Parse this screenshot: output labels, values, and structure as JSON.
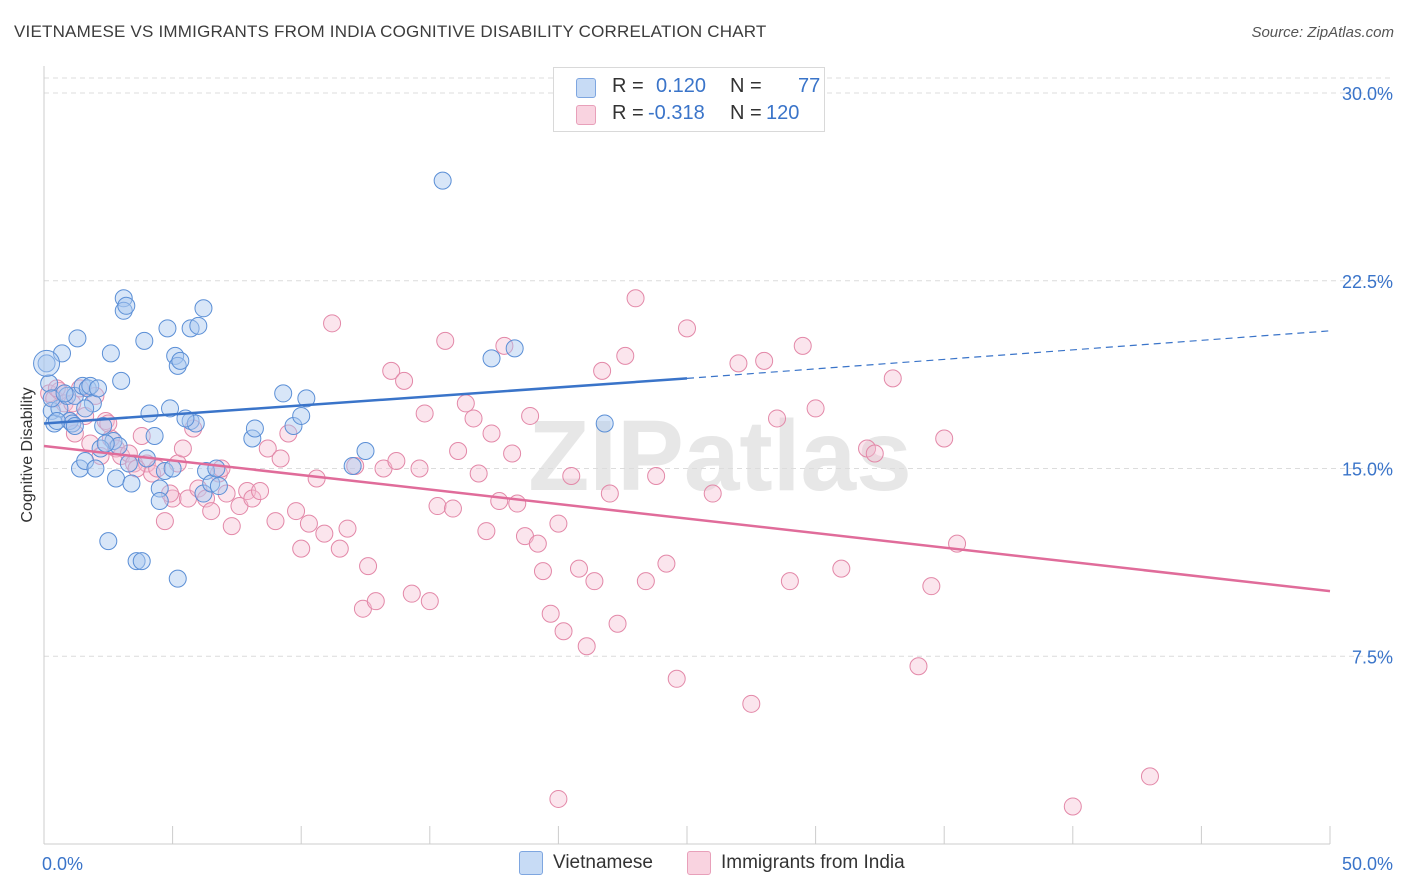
{
  "title": "VIETNAMESE VS IMMIGRANTS FROM INDIA COGNITIVE DISABILITY CORRELATION CHART",
  "source": "Source: ZipAtlas.com",
  "watermark": "ZIPatlas",
  "legend_top": [
    {
      "r_label": "R =",
      "r_value": "0.120",
      "n_label": "N =",
      "n_value": "77",
      "color": "#a9c8f0",
      "edge": "#5b8fd6"
    },
    {
      "r_label": "R =",
      "r_value": "-0.318",
      "n_label": "N =",
      "n_value": "120",
      "color": "#f6bfd2",
      "edge": "#e388a8"
    }
  ],
  "legend_bottom": [
    "Vietnamese",
    "Immigrants from India"
  ],
  "colors": {
    "blue": "#3a74c9",
    "pink": "#e06c9a",
    "axis_text": "#3a74c9",
    "grid": "#dddddd"
  },
  "chart_data": {
    "type": "scatter",
    "title": "VIETNAMESE VS IMMIGRANTS FROM INDIA COGNITIVE DISABILITY CORRELATION CHART",
    "xlabel": "",
    "ylabel": "Cognitive Disability",
    "xlim": [
      0,
      50
    ],
    "ylim": [
      0,
      30.6
    ],
    "x_tick_labels": [
      "0.0%",
      "50.0%"
    ],
    "y_ticks": [
      7.5,
      15.0,
      22.5,
      30.0
    ],
    "y_tick_labels": [
      "7.5%",
      "15.0%",
      "22.5%",
      "30.0%"
    ],
    "series": [
      {
        "name": "Vietnamese",
        "r": 0.12,
        "n": 77,
        "trend": {
          "x0": 0,
          "y0": 16.8,
          "x1": 25,
          "y1": 18.6,
          "dash_to_x": 50,
          "dash_to_y": 20.5
        },
        "points": [
          [
            0.1,
            19.2
          ],
          [
            0.2,
            18.4
          ],
          [
            0.3,
            17.3
          ],
          [
            0.4,
            16.8
          ],
          [
            0.6,
            17.4
          ],
          [
            0.7,
            19.6
          ],
          [
            0.9,
            17.9
          ],
          [
            1.0,
            16.9
          ],
          [
            1.1,
            16.8
          ],
          [
            1.2,
            17.9
          ],
          [
            1.3,
            20.2
          ],
          [
            1.4,
            15.0
          ],
          [
            1.5,
            18.3
          ],
          [
            1.6,
            15.3
          ],
          [
            1.7,
            18.2
          ],
          [
            1.8,
            18.3
          ],
          [
            1.9,
            17.6
          ],
          [
            2.0,
            15.0
          ],
          [
            2.1,
            18.2
          ],
          [
            2.3,
            16.7
          ],
          [
            2.5,
            12.1
          ],
          [
            2.6,
            19.6
          ],
          [
            2.7,
            16.1
          ],
          [
            2.8,
            14.6
          ],
          [
            3.0,
            18.5
          ],
          [
            3.1,
            21.8
          ],
          [
            3.1,
            21.3
          ],
          [
            3.2,
            21.5
          ],
          [
            3.4,
            14.4
          ],
          [
            3.6,
            11.3
          ],
          [
            3.8,
            11.3
          ],
          [
            3.9,
            20.1
          ],
          [
            4.1,
            17.2
          ],
          [
            4.3,
            16.3
          ],
          [
            4.5,
            14.2
          ],
          [
            4.5,
            13.7
          ],
          [
            4.7,
            14.9
          ],
          [
            4.8,
            20.6
          ],
          [
            4.9,
            17.4
          ],
          [
            5.0,
            15.0
          ],
          [
            5.1,
            19.5
          ],
          [
            5.2,
            19.1
          ],
          [
            5.2,
            10.6
          ],
          [
            5.3,
            19.3
          ],
          [
            5.7,
            20.6
          ],
          [
            5.7,
            16.9
          ],
          [
            5.9,
            16.8
          ],
          [
            6.0,
            20.7
          ],
          [
            6.2,
            21.4
          ],
          [
            6.2,
            14.0
          ],
          [
            6.3,
            14.9
          ],
          [
            6.5,
            14.4
          ],
          [
            6.7,
            15.0
          ],
          [
            8.1,
            16.2
          ],
          [
            8.2,
            16.6
          ],
          [
            9.3,
            18.0
          ],
          [
            9.7,
            16.7
          ],
          [
            10.0,
            17.1
          ],
          [
            10.2,
            17.8
          ],
          [
            12.0,
            15.1
          ],
          [
            12.5,
            15.7
          ],
          [
            15.5,
            26.5
          ],
          [
            17.4,
            19.4
          ],
          [
            18.3,
            19.8
          ],
          [
            21.8,
            16.8
          ],
          [
            0.3,
            17.8
          ],
          [
            0.5,
            16.9
          ],
          [
            2.2,
            15.8
          ],
          [
            2.9,
            15.9
          ],
          [
            1.6,
            17.4
          ],
          [
            0.8,
            18.0
          ],
          [
            2.4,
            16.0
          ],
          [
            4.0,
            15.4
          ],
          [
            5.5,
            17.0
          ],
          [
            6.8,
            14.3
          ],
          [
            1.2,
            16.7
          ],
          [
            3.3,
            15.2
          ]
        ]
      },
      {
        "name": "Immigrants from India",
        "r": -0.318,
        "n": 120,
        "trend": {
          "x0": 0,
          "y0": 15.9,
          "x1": 50,
          "y1": 10.1
        },
        "points": [
          [
            0.2,
            18.0
          ],
          [
            0.4,
            17.8
          ],
          [
            0.6,
            18.1
          ],
          [
            0.8,
            17.6
          ],
          [
            1.0,
            16.9
          ],
          [
            1.2,
            16.4
          ],
          [
            1.4,
            18.2
          ],
          [
            1.6,
            17.1
          ],
          [
            1.8,
            16.0
          ],
          [
            2.0,
            17.9
          ],
          [
            2.2,
            15.5
          ],
          [
            2.4,
            16.9
          ],
          [
            2.6,
            16.2
          ],
          [
            2.8,
            15.8
          ],
          [
            3.0,
            15.5
          ],
          [
            3.3,
            15.6
          ],
          [
            3.5,
            15.2
          ],
          [
            3.8,
            16.3
          ],
          [
            4.0,
            15.2
          ],
          [
            4.2,
            14.8
          ],
          [
            4.4,
            15.0
          ],
          [
            4.7,
            12.9
          ],
          [
            5.0,
            13.8
          ],
          [
            5.2,
            15.2
          ],
          [
            5.4,
            15.8
          ],
          [
            5.6,
            13.8
          ],
          [
            5.8,
            16.6
          ],
          [
            6.0,
            14.2
          ],
          [
            6.3,
            13.8
          ],
          [
            6.5,
            13.3
          ],
          [
            6.8,
            14.8
          ],
          [
            7.1,
            14.0
          ],
          [
            7.3,
            12.7
          ],
          [
            7.6,
            13.5
          ],
          [
            7.9,
            14.1
          ],
          [
            8.1,
            13.8
          ],
          [
            8.4,
            14.1
          ],
          [
            8.7,
            15.8
          ],
          [
            9.0,
            12.9
          ],
          [
            9.2,
            15.4
          ],
          [
            9.5,
            16.4
          ],
          [
            9.8,
            13.3
          ],
          [
            10.0,
            11.8
          ],
          [
            10.3,
            12.8
          ],
          [
            10.6,
            14.6
          ],
          [
            10.9,
            12.4
          ],
          [
            11.2,
            20.8
          ],
          [
            11.5,
            11.8
          ],
          [
            11.8,
            12.6
          ],
          [
            12.1,
            15.1
          ],
          [
            12.4,
            9.4
          ],
          [
            12.6,
            11.1
          ],
          [
            12.9,
            9.7
          ],
          [
            13.2,
            15.0
          ],
          [
            13.5,
            18.9
          ],
          [
            13.7,
            15.3
          ],
          [
            14.0,
            18.5
          ],
          [
            14.3,
            10.0
          ],
          [
            14.6,
            15.0
          ],
          [
            14.8,
            17.2
          ],
          [
            15.0,
            9.7
          ],
          [
            15.3,
            13.5
          ],
          [
            15.6,
            20.1
          ],
          [
            15.9,
            13.4
          ],
          [
            16.1,
            15.7
          ],
          [
            16.4,
            17.6
          ],
          [
            16.7,
            17.0
          ],
          [
            16.9,
            14.8
          ],
          [
            17.2,
            12.5
          ],
          [
            17.4,
            16.4
          ],
          [
            17.7,
            13.7
          ],
          [
            17.9,
            19.9
          ],
          [
            18.2,
            15.6
          ],
          [
            18.4,
            13.6
          ],
          [
            18.7,
            12.3
          ],
          [
            18.9,
            17.1
          ],
          [
            19.2,
            12.0
          ],
          [
            19.4,
            10.9
          ],
          [
            19.7,
            9.2
          ],
          [
            20.0,
            12.8
          ],
          [
            20.2,
            8.5
          ],
          [
            20.5,
            14.7
          ],
          [
            20.8,
            11.0
          ],
          [
            21.1,
            7.9
          ],
          [
            21.4,
            10.5
          ],
          [
            21.7,
            18.9
          ],
          [
            22.0,
            14.0
          ],
          [
            22.3,
            8.8
          ],
          [
            22.6,
            19.5
          ],
          [
            23.0,
            21.8
          ],
          [
            23.4,
            10.5
          ],
          [
            23.8,
            14.7
          ],
          [
            24.2,
            11.2
          ],
          [
            24.6,
            6.6
          ],
          [
            25.0,
            20.6
          ],
          [
            26.0,
            14.0
          ],
          [
            27.0,
            19.2
          ],
          [
            27.5,
            5.6
          ],
          [
            28.0,
            19.3
          ],
          [
            28.5,
            17.0
          ],
          [
            29.0,
            10.5
          ],
          [
            29.5,
            19.9
          ],
          [
            30.0,
            17.4
          ],
          [
            31.0,
            11.0
          ],
          [
            32.0,
            15.8
          ],
          [
            32.3,
            15.6
          ],
          [
            33.0,
            18.6
          ],
          [
            34.0,
            7.1
          ],
          [
            34.5,
            10.3
          ],
          [
            35.0,
            16.2
          ],
          [
            35.5,
            12.0
          ],
          [
            40.0,
            1.5
          ],
          [
            43.0,
            2.7
          ],
          [
            20.0,
            1.8
          ],
          [
            0.5,
            18.2
          ],
          [
            1.1,
            17.6
          ],
          [
            2.5,
            16.8
          ],
          [
            3.6,
            15.0
          ],
          [
            4.9,
            14.0
          ],
          [
            6.9,
            15.0
          ]
        ]
      }
    ]
  }
}
